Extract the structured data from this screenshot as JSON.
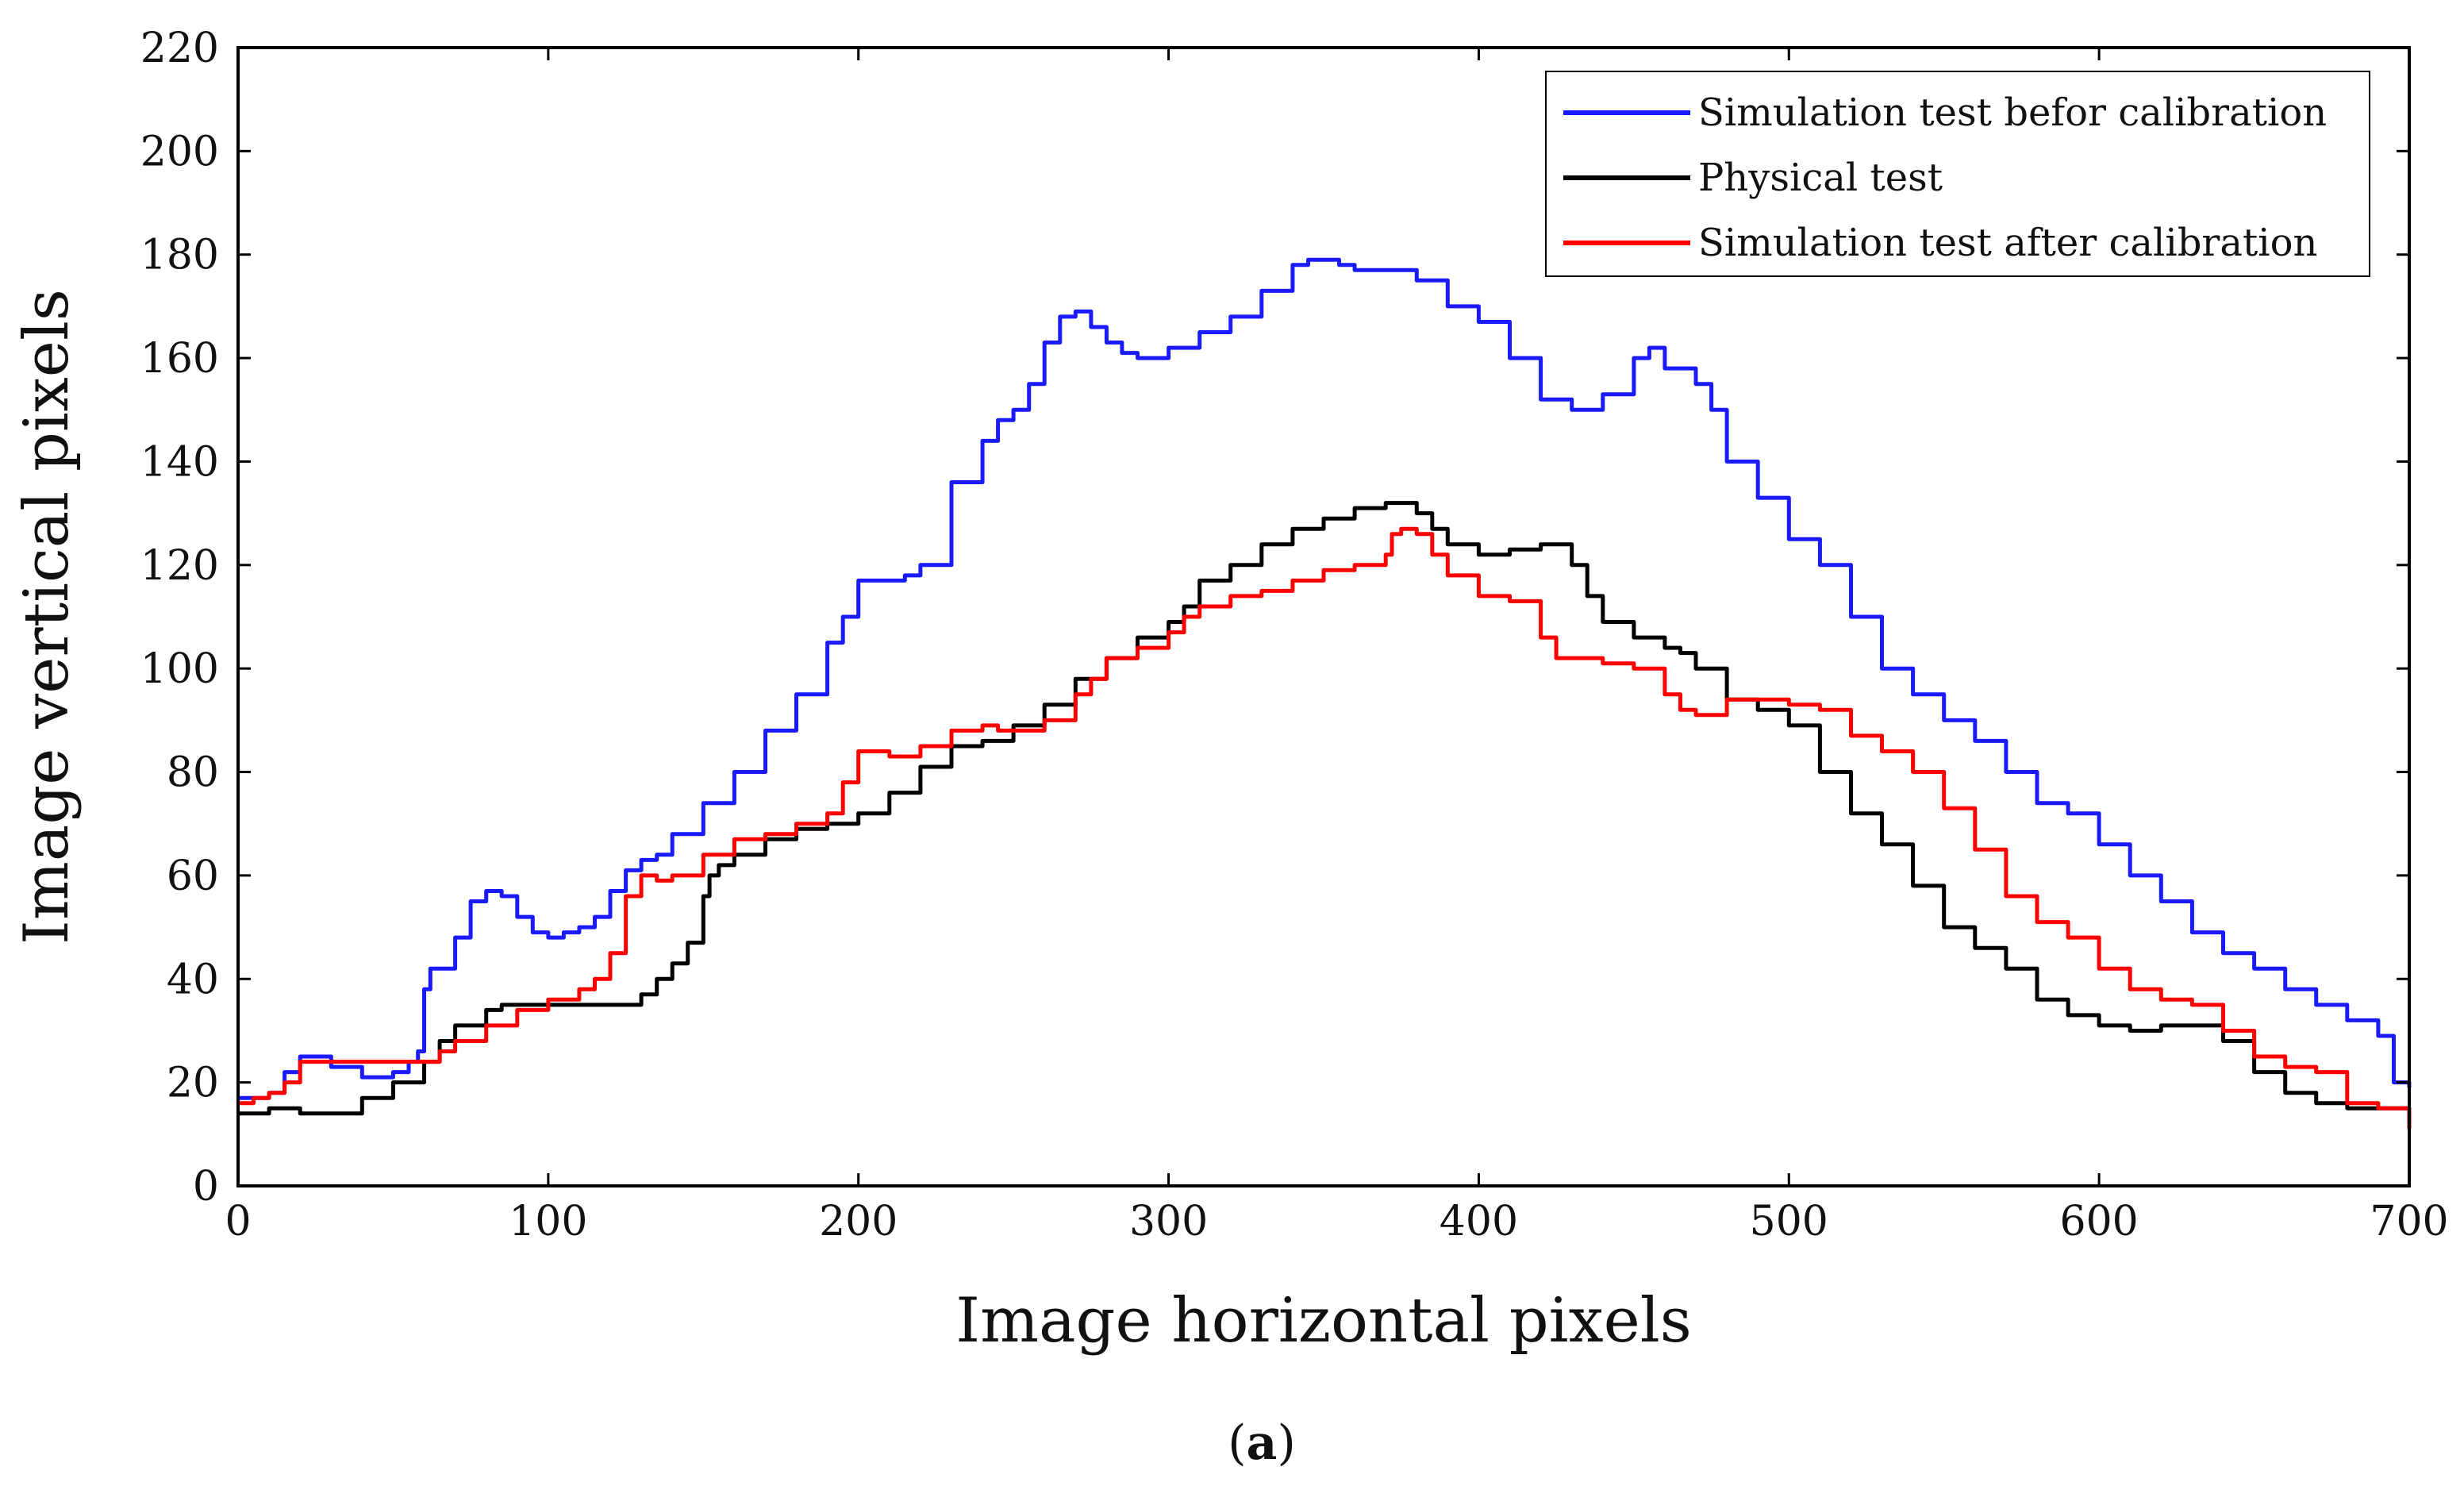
{
  "caption_parts": [
    "(",
    "a",
    ")"
  ],
  "chart_data": {
    "type": "line",
    "title": "",
    "xlabel": "Image horizontal pixels",
    "ylabel": "Image vertical pixels",
    "xlim": [
      0,
      700
    ],
    "ylim": [
      0,
      220
    ],
    "xticks": [
      0,
      100,
      200,
      300,
      400,
      500,
      600,
      700
    ],
    "yticks": [
      0,
      20,
      40,
      60,
      80,
      100,
      120,
      140,
      160,
      180,
      200,
      220
    ],
    "grid": false,
    "legend_position": "top-right",
    "series": [
      {
        "name": "Simulation test befor calibration",
        "color": "#1a1aff",
        "x": [
          0,
          10,
          15,
          20,
          25,
          30,
          40,
          50,
          55,
          58,
          60,
          62,
          70,
          75,
          80,
          85,
          90,
          95,
          100,
          105,
          110,
          115,
          120,
          125,
          130,
          135,
          140,
          150,
          160,
          170,
          180,
          190,
          195,
          200,
          205,
          210,
          215,
          220,
          230,
          240,
          245,
          250,
          255,
          260,
          265,
          270,
          275,
          280,
          285,
          290,
          300,
          310,
          320,
          330,
          340,
          345,
          350,
          355,
          360,
          370,
          380,
          390,
          400,
          410,
          420,
          430,
          440,
          450,
          455,
          460,
          470,
          475,
          480,
          490,
          500,
          510,
          520,
          530,
          540,
          550,
          560,
          570,
          580,
          590,
          600,
          610,
          620,
          630,
          640,
          650,
          660,
          670,
          680,
          690,
          695,
          700
        ],
        "y": [
          17,
          18,
          22,
          25,
          25,
          23,
          21,
          22,
          24,
          26,
          38,
          42,
          48,
          55,
          57,
          56,
          52,
          49,
          48,
          49,
          50,
          52,
          57,
          61,
          63,
          64,
          68,
          74,
          80,
          88,
          95,
          105,
          110,
          117,
          117,
          117,
          118,
          120,
          136,
          144,
          148,
          150,
          155,
          163,
          168,
          169,
          166,
          163,
          161,
          160,
          162,
          165,
          168,
          173,
          178,
          179,
          179,
          178,
          177,
          177,
          175,
          170,
          167,
          160,
          152,
          150,
          153,
          160,
          162,
          158,
          155,
          150,
          140,
          133,
          125,
          120,
          110,
          100,
          95,
          90,
          86,
          80,
          74,
          72,
          66,
          60,
          55,
          49,
          45,
          42,
          38,
          35,
          32,
          29,
          20,
          19
        ]
      },
      {
        "name": "Physical test",
        "color": "#000000",
        "x": [
          0,
          10,
          20,
          30,
          40,
          50,
          60,
          65,
          70,
          80,
          85,
          90,
          100,
          110,
          120,
          125,
          130,
          135,
          140,
          145,
          150,
          152,
          155,
          160,
          170,
          180,
          190,
          200,
          210,
          220,
          230,
          240,
          250,
          260,
          270,
          280,
          290,
          300,
          305,
          310,
          320,
          330,
          340,
          350,
          360,
          370,
          375,
          380,
          385,
          390,
          400,
          410,
          420,
          425,
          430,
          435,
          440,
          450,
          460,
          465,
          470,
          480,
          490,
          500,
          510,
          520,
          530,
          540,
          550,
          560,
          570,
          580,
          590,
          600,
          610,
          620,
          630,
          640,
          650,
          660,
          670,
          680,
          690,
          700
        ],
        "y": [
          14,
          15,
          14,
          14,
          17,
          20,
          24,
          28,
          31,
          34,
          35,
          35,
          35,
          35,
          35,
          35,
          37,
          40,
          43,
          47,
          56,
          60,
          62,
          64,
          67,
          69,
          70,
          72,
          76,
          81,
          85,
          86,
          89,
          93,
          98,
          102,
          106,
          109,
          112,
          117,
          120,
          124,
          127,
          129,
          131,
          132,
          132,
          130,
          127,
          124,
          122,
          123,
          124,
          124,
          120,
          114,
          109,
          106,
          104,
          103,
          100,
          94,
          92,
          89,
          80,
          72,
          66,
          58,
          50,
          46,
          42,
          36,
          33,
          31,
          30,
          31,
          31,
          28,
          22,
          18,
          16,
          15,
          15,
          15
        ]
      },
      {
        "name": "Simulation test after calibration",
        "color": "#ff0000",
        "x": [
          0,
          5,
          10,
          15,
          20,
          30,
          40,
          50,
          60,
          65,
          70,
          80,
          90,
          100,
          110,
          115,
          120,
          125,
          130,
          135,
          140,
          150,
          160,
          170,
          180,
          190,
          195,
          200,
          205,
          210,
          220,
          230,
          240,
          245,
          250,
          260,
          270,
          275,
          280,
          290,
          300,
          305,
          310,
          320,
          330,
          340,
          350,
          360,
          370,
          372,
          375,
          380,
          385,
          390,
          400,
          410,
          420,
          425,
          430,
          440,
          450,
          460,
          465,
          470,
          480,
          490,
          500,
          510,
          520,
          530,
          540,
          550,
          560,
          570,
          580,
          590,
          600,
          610,
          620,
          630,
          640,
          650,
          660,
          670,
          680,
          690,
          700
        ],
        "y": [
          16,
          17,
          18,
          20,
          24,
          24,
          24,
          24,
          24,
          26,
          28,
          31,
          34,
          36,
          38,
          40,
          45,
          56,
          60,
          59,
          60,
          64,
          67,
          68,
          70,
          72,
          78,
          84,
          84,
          83,
          85,
          88,
          89,
          88,
          88,
          90,
          95,
          98,
          102,
          104,
          107,
          110,
          112,
          114,
          115,
          117,
          119,
          120,
          122,
          126,
          127,
          126,
          122,
          118,
          114,
          113,
          106,
          102,
          102,
          101,
          100,
          95,
          92,
          91,
          94,
          94,
          93,
          92,
          87,
          84,
          80,
          73,
          65,
          56,
          51,
          48,
          42,
          38,
          36,
          35,
          30,
          25,
          23,
          22,
          16,
          15,
          11
        ]
      }
    ]
  }
}
